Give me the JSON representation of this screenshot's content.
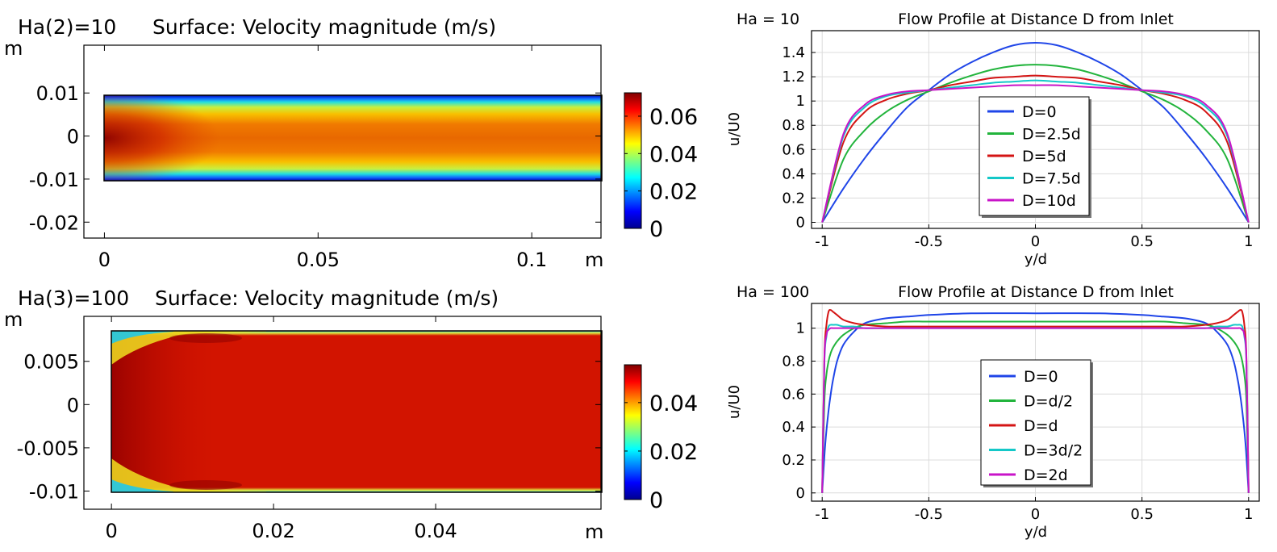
{
  "chart_data": [
    {
      "type": "heatmap",
      "title_prefix": "Ha(2)=10",
      "title": "Surface: Velocity magnitude (m/s)",
      "xlabel": "m",
      "ylabel": "m",
      "x_ticks": [
        "0",
        "0.05",
        "0.1"
      ],
      "x_tick_values": [
        0,
        0.05,
        0.1
      ],
      "y_ticks": [
        "0.01",
        "0",
        "-0.01",
        "-0.02"
      ],
      "y_tick_values": [
        0.01,
        0,
        -0.01,
        -0.02
      ],
      "xlim": [
        -0.0048,
        0.1162
      ],
      "ylim": [
        -0.0237,
        0.0211
      ],
      "domain": {
        "x": [
          0,
          0.1162
        ],
        "y": [
          -0.01,
          0.01
        ]
      },
      "colorbar": {
        "ticks": [
          "0",
          "0.02",
          "0.04",
          "0.06"
        ],
        "tick_values": [
          0,
          0.02,
          0.04,
          0.06
        ],
        "range": [
          0,
          0.0725
        ]
      },
      "inlet_value": 0.069,
      "outlet_value": 0.056
    },
    {
      "type": "heatmap",
      "title_prefix": "Ha(3)=100",
      "title": "Surface: Velocity magnitude (m/s)",
      "xlabel": "m",
      "ylabel": "m",
      "x_ticks": [
        "0",
        "0.02",
        "0.04"
      ],
      "x_tick_values": [
        0,
        0.02,
        0.04
      ],
      "y_ticks": [
        "0.005",
        "0",
        "-0.005",
        "-0.01"
      ],
      "y_tick_values": [
        0.005,
        0,
        -0.005,
        -0.01
      ],
      "xlim": [
        -0.0034,
        0.0604
      ],
      "ylim": [
        -0.0121,
        0.0102
      ],
      "domain": {
        "x": [
          0,
          0.0604
        ],
        "y": [
          -0.01,
          0.01
        ]
      },
      "colorbar": {
        "ticks": [
          "0",
          "0.02",
          "0.04"
        ],
        "tick_values": [
          0,
          0.02,
          0.04
        ],
        "range": [
          0,
          0.0556
        ]
      },
      "core_value": 0.0485
    },
    {
      "type": "line",
      "corner_label": "Ha = 10",
      "title": "Flow Profile at Distance D from Inlet",
      "xlabel": "y/d",
      "ylabel": "u/U0",
      "xlim": [
        -1.05,
        1.05
      ],
      "ylim": [
        -0.05,
        1.58
      ],
      "x_ticks": [
        -1,
        -0.5,
        0,
        0.5,
        1
      ],
      "y_ticks": [
        0,
        0.2,
        0.4,
        0.6,
        0.8,
        1,
        1.2,
        1.4
      ],
      "x": [
        -1,
        -0.9,
        -0.8,
        -0.7,
        -0.6,
        -0.5,
        -0.4,
        -0.3,
        -0.2,
        -0.1,
        0,
        0.1,
        0.2,
        0.3,
        0.4,
        0.5,
        0.6,
        0.7,
        0.8,
        0.9,
        1
      ],
      "series": [
        {
          "name": "D=0",
          "color": "#1f45e8",
          "values": [
            0,
            0.28,
            0.53,
            0.75,
            0.95,
            1.09,
            1.22,
            1.32,
            1.4,
            1.46,
            1.48,
            1.46,
            1.4,
            1.32,
            1.22,
            1.09,
            0.95,
            0.75,
            0.53,
            0.28,
            0
          ]
        },
        {
          "name": "D=2.5d",
          "color": "#22b43c",
          "values": [
            0,
            0.52,
            0.76,
            0.91,
            1.01,
            1.08,
            1.15,
            1.21,
            1.26,
            1.29,
            1.3,
            1.29,
            1.26,
            1.21,
            1.15,
            1.08,
            1.01,
            0.91,
            0.76,
            0.52,
            0
          ]
        },
        {
          "name": "D=5d",
          "color": "#d41414",
          "values": [
            0,
            0.66,
            0.91,
            1.01,
            1.06,
            1.09,
            1.13,
            1.16,
            1.19,
            1.2,
            1.21,
            1.2,
            1.19,
            1.16,
            1.13,
            1.09,
            1.06,
            1.01,
            0.91,
            0.66,
            0
          ]
        },
        {
          "name": "D=7.5d",
          "color": "#14c8c8",
          "values": [
            0,
            0.71,
            0.95,
            1.04,
            1.07,
            1.09,
            1.11,
            1.13,
            1.15,
            1.16,
            1.17,
            1.16,
            1.15,
            1.13,
            1.11,
            1.09,
            1.07,
            1.04,
            0.95,
            0.71,
            0
          ]
        },
        {
          "name": "D=10d",
          "color": "#c814c8",
          "values": [
            0,
            0.73,
            0.97,
            1.05,
            1.08,
            1.09,
            1.1,
            1.11,
            1.12,
            1.13,
            1.13,
            1.13,
            1.12,
            1.11,
            1.1,
            1.09,
            1.08,
            1.05,
            0.97,
            0.73,
            0
          ]
        }
      ]
    },
    {
      "type": "line",
      "corner_label": "Ha = 100",
      "title": "Flow Profile at Distance D from Inlet",
      "xlabel": "y/d",
      "ylabel": "u/U0",
      "xlim": [
        -1.05,
        1.05
      ],
      "ylim": [
        -0.05,
        1.15
      ],
      "x_ticks": [
        -1,
        -0.5,
        0,
        0.5,
        1
      ],
      "y_ticks": [
        0,
        0.2,
        0.4,
        0.6,
        0.8,
        1
      ],
      "x": [
        -1,
        -0.99,
        -0.98,
        -0.97,
        -0.96,
        -0.95,
        -0.93,
        -0.9,
        -0.85,
        -0.8,
        -0.7,
        -0.6,
        -0.5,
        -0.3,
        0,
        0.3,
        0.5,
        0.6,
        0.7,
        0.8,
        0.85,
        0.9,
        0.93,
        0.95,
        0.96,
        0.97,
        0.98,
        0.99,
        1
      ],
      "series": [
        {
          "name": "D=0",
          "color": "#1f45e8",
          "values": [
            0,
            0.22,
            0.38,
            0.5,
            0.6,
            0.68,
            0.8,
            0.9,
            0.98,
            1.03,
            1.06,
            1.07,
            1.08,
            1.09,
            1.09,
            1.09,
            1.08,
            1.07,
            1.06,
            1.03,
            0.98,
            0.9,
            0.8,
            0.68,
            0.6,
            0.5,
            0.38,
            0.22,
            0
          ]
        },
        {
          "name": "D=d/2",
          "color": "#22b43c",
          "values": [
            0,
            0.55,
            0.72,
            0.8,
            0.85,
            0.88,
            0.92,
            0.96,
            1.0,
            1.02,
            1.03,
            1.04,
            1.04,
            1.04,
            1.04,
            1.04,
            1.04,
            1.04,
            1.03,
            1.02,
            1.0,
            0.96,
            0.92,
            0.88,
            0.85,
            0.8,
            0.72,
            0.55,
            0
          ]
        },
        {
          "name": "D=d",
          "color": "#d41414",
          "values": [
            0,
            0.82,
            1.02,
            1.1,
            1.11,
            1.1,
            1.08,
            1.05,
            1.03,
            1.02,
            1.01,
            1.01,
            1.01,
            1.01,
            1.01,
            1.01,
            1.01,
            1.01,
            1.01,
            1.02,
            1.03,
            1.05,
            1.08,
            1.1,
            1.11,
            1.1,
            1.02,
            0.82,
            0
          ]
        },
        {
          "name": "D=3d/2",
          "color": "#14c8c8",
          "values": [
            0,
            0.78,
            0.95,
            1.01,
            1.02,
            1.02,
            1.02,
            1.01,
            1.01,
            1.0,
            1.0,
            1.0,
            1.0,
            1.0,
            1.0,
            1.0,
            1.0,
            1.0,
            1.0,
            1.0,
            1.01,
            1.01,
            1.02,
            1.02,
            1.02,
            1.01,
            0.95,
            0.78,
            0
          ]
        },
        {
          "name": "D=2d",
          "color": "#c814c8",
          "values": [
            0,
            0.8,
            0.96,
            0.99,
            1.0,
            1.0,
            1.0,
            1.0,
            1.0,
            1.0,
            1.0,
            1.0,
            1.0,
            1.0,
            1.0,
            1.0,
            1.0,
            1.0,
            1.0,
            1.0,
            1.0,
            1.0,
            1.0,
            1.0,
            1.0,
            0.99,
            0.96,
            0.8,
            0
          ]
        }
      ]
    }
  ]
}
